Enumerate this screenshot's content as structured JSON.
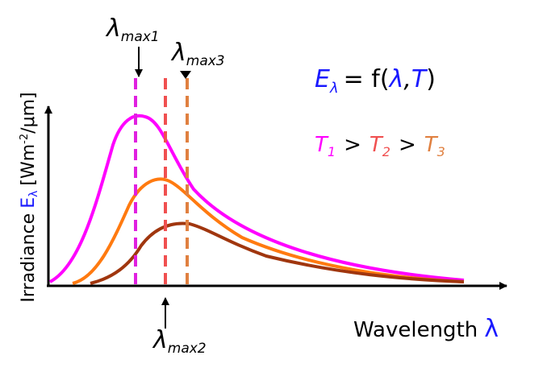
{
  "axes": {
    "x_label": "Wavelength",
    "x_symbol": "λ",
    "y_label": "Irradiance",
    "y_symbol": "E",
    "y_symbol_sub": "λ",
    "y_unit_open": "[Wm",
    "y_unit_exp": "-2",
    "y_unit_close": "/μm]"
  },
  "markers": [
    {
      "symbol": "λ",
      "subscript": "max1"
    },
    {
      "symbol": "λ",
      "subscript": "max2"
    },
    {
      "symbol": "λ",
      "subscript": "max3"
    }
  ],
  "equation": {
    "lhs": "E",
    "lhs_sub": "λ",
    "op": "= f(",
    "arg1": "λ",
    "sep": ",",
    "arg2": "T",
    "close": ")"
  },
  "ordering": {
    "terms": [
      {
        "symbol": "T",
        "subscript": "1"
      },
      {
        "symbol": "T",
        "subscript": "2"
      },
      {
        "symbol": "T",
        "subscript": "3"
      }
    ],
    "relation": ">"
  }
}
